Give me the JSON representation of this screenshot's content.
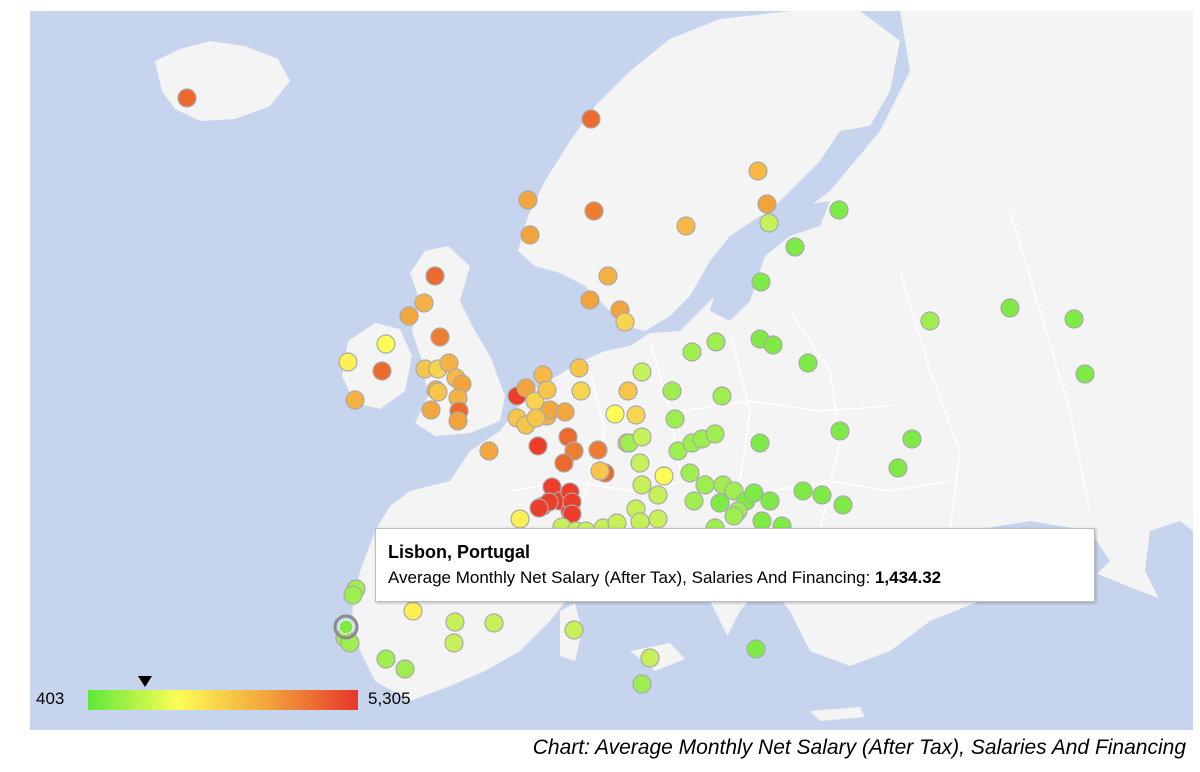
{
  "tooltip": {
    "title": "Lisbon, Portugal",
    "series_label": "Average Monthly Net Salary (After Tax), Salaries And Financing:",
    "value": "1,434.32"
  },
  "legend": {
    "min_label": "403",
    "max_label": "5,305",
    "min": 403,
    "max": 5305,
    "marker_value": 1434.32,
    "colors": [
      "#5ee83a",
      "#fdfd55",
      "#f2a33c",
      "#e8352a"
    ]
  },
  "caption": "Chart: Average Monthly Net Salary (After Tax), Salaries And Financing",
  "colors": {
    "water": "#c6d4ee",
    "land": "#f4f4f4",
    "border": "#ffffff"
  },
  "selected_city": "Lisbon, Portugal"
}
